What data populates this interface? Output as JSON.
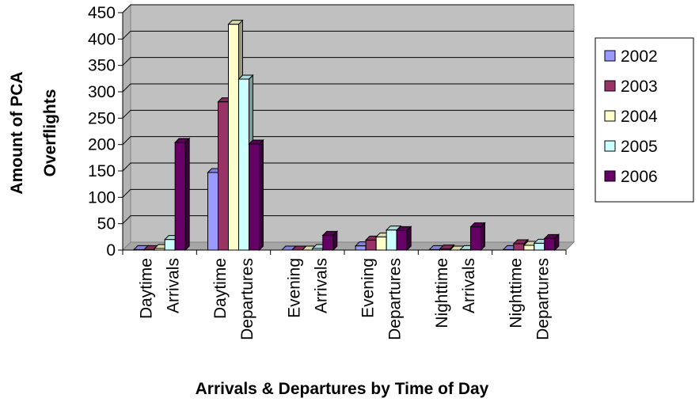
{
  "chart_data": {
    "type": "bar",
    "title": "",
    "xlabel": "Arrivals & Departures by Time of Day",
    "ylabel": [
      "Amount of PCA",
      "Overflights"
    ],
    "ylim": [
      0,
      450
    ],
    "yticks": [
      "0",
      "50",
      "100",
      "150",
      "200",
      "250",
      "300",
      "350",
      "400",
      "450"
    ],
    "categories": [
      [
        "Daytime",
        "Arrivals"
      ],
      [
        "Daytime",
        "Departures"
      ],
      [
        "Evening",
        "Arrivals"
      ],
      [
        "Evening",
        "Departures"
      ],
      [
        "Nighttime",
        "Arrivals"
      ],
      [
        "Nighttime",
        "Departures"
      ]
    ],
    "series": [
      {
        "name": "2002",
        "color": "#9999ff",
        "values": [
          1,
          147,
          0,
          8,
          1,
          1
        ]
      },
      {
        "name": "2003",
        "color": "#993366",
        "values": [
          1,
          281,
          0,
          19,
          2,
          12
        ]
      },
      {
        "name": "2004",
        "color": "#ffffcc",
        "values": [
          3,
          428,
          0,
          25,
          0,
          9
        ]
      },
      {
        "name": "2005",
        "color": "#ccffff",
        "values": [
          20,
          324,
          3,
          38,
          1,
          13
        ]
      },
      {
        "name": "2006",
        "color": "#660066",
        "values": [
          204,
          201,
          28,
          37,
          44,
          22
        ]
      }
    ],
    "plot_background": "#c0c0c0",
    "grid": true,
    "legend_position": "right"
  }
}
